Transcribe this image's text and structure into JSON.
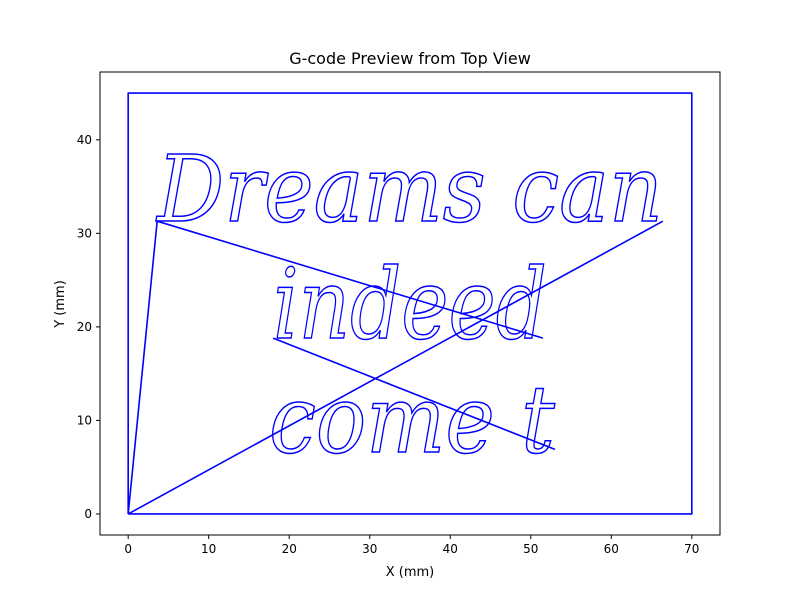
{
  "chart_data": {
    "type": "line",
    "title": "G-code Preview from Top View",
    "xlabel": "X (mm)",
    "ylabel": "Y (mm)",
    "xlim": [
      -3.5,
      73.5
    ],
    "ylim": [
      -2.25,
      47.25
    ],
    "xticks": [
      0,
      10,
      20,
      30,
      40,
      50,
      60,
      70
    ],
    "yticks": [
      0,
      10,
      20,
      30,
      40
    ],
    "grid": false,
    "legend": "none",
    "color": "#0000ff",
    "series": [
      {
        "id": "boundary",
        "points": [
          [
            0,
            0
          ],
          [
            70,
            0
          ],
          [
            70,
            45
          ],
          [
            0,
            45
          ],
          [
            0,
            0
          ]
        ]
      },
      {
        "id": "travel-to-line1",
        "points": [
          [
            0,
            0
          ],
          [
            3.6,
            31.3
          ]
        ]
      },
      {
        "id": "text-line-1",
        "text": "Dreams can",
        "baseline": 31.3,
        "cap_top": 38.6,
        "x_start": 3.6,
        "x_end": 66.4
      },
      {
        "id": "travel-to-line2",
        "points": [
          [
            3.6,
            31.3
          ],
          [
            51.5,
            18.8
          ]
        ]
      },
      {
        "id": "travel-to-line2b",
        "points": [
          [
            66.4,
            31.3
          ],
          [
            0,
            0
          ]
        ]
      },
      {
        "id": "text-line-2",
        "text": "indeed",
        "baseline": 18.8,
        "cap_top": 26.5,
        "x_start": 18.0,
        "x_end": 52.0
      },
      {
        "id": "travel-to-line3",
        "points": [
          [
            18.0,
            18.8
          ],
          [
            53.0,
            6.9
          ]
        ]
      },
      {
        "id": "text-line-3",
        "text": "come t",
        "baseline": 6.6,
        "cap_top": 14.0,
        "x_start": 17.5,
        "x_end": 53.0
      }
    ]
  }
}
